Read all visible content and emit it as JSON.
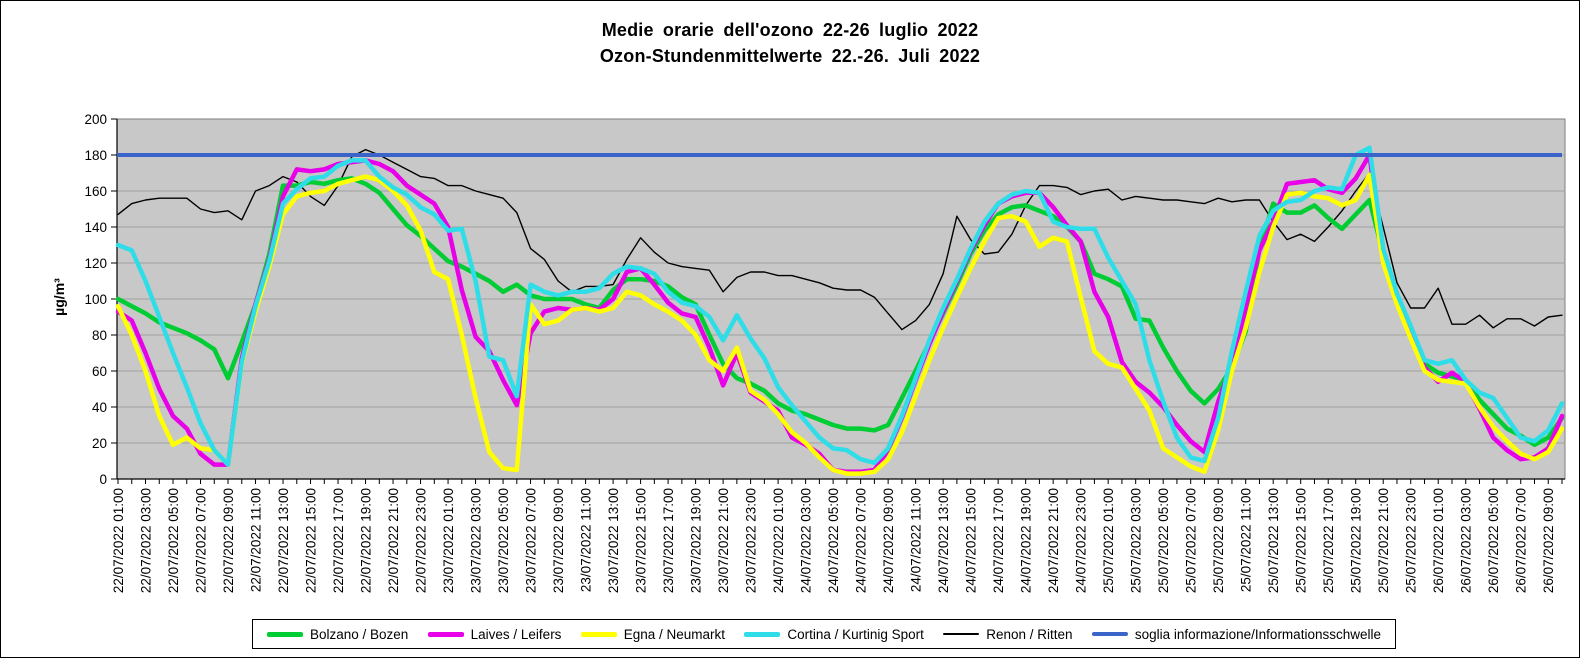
{
  "title": {
    "line1": "Medie orarie dell'ozono 22-26 luglio 2022",
    "line2": "Ozon-Stundenmittelwerte 22.-26. Juli 2022"
  },
  "y_axis": {
    "title": "µg/m³",
    "ticks": [
      "0",
      "20",
      "40",
      "60",
      "80",
      "100",
      "120",
      "140",
      "160",
      "180",
      "200"
    ]
  },
  "x_axis": {
    "tick_labels": [
      "22/07/2022 01:00",
      "22/07/2022 03:00",
      "22/07/2022 05:00",
      "22/07/2022 07:00",
      "22/07/2022 09:00",
      "22/07/2022 11:00",
      "22/07/2022 13:00",
      "22/07/2022 15:00",
      "22/07/2022 17:00",
      "22/07/2022 19:00",
      "22/07/2022 21:00",
      "22/07/2022 23:00",
      "23/07/2022 01:00",
      "23/07/2022 03:00",
      "23/07/2022 05:00",
      "23/07/2022 07:00",
      "23/07/2022 09:00",
      "23/07/2022 11:00",
      "23/07/2022 13:00",
      "23/07/2022 15:00",
      "23/07/2022 17:00",
      "23/07/2022 19:00",
      "23/07/2022 21:00",
      "23/07/2022 23:00",
      "24/07/2022 01:00",
      "24/07/2022 03:00",
      "24/07/2022 05:00",
      "24/07/2022 07:00",
      "24/07/2022 09:00",
      "24/07/2022 11:00",
      "24/07/2022 13:00",
      "24/07/2022 15:00",
      "24/07/2022 17:00",
      "24/07/2022 19:00",
      "24/07/2022 21:00",
      "24/07/2022 23:00",
      "25/07/2022 01:00",
      "25/07/2022 03:00",
      "25/07/2022 05:00",
      "25/07/2022 07:00",
      "25/07/2022 09:00",
      "25/07/2022 11:00",
      "25/07/2022 13:00",
      "25/07/2022 15:00",
      "25/07/2022 17:00",
      "25/07/2022 19:00",
      "25/07/2022 21:00",
      "25/07/2022 23:00",
      "26/07/2022 01:00",
      "26/07/2022 03:00",
      "26/07/2022 05:00",
      "26/07/2022 07:00",
      "26/07/2022 09:00"
    ],
    "label_every": 2
  },
  "legend": [
    {
      "id": "bolzano",
      "label": "Bolzano / Bozen",
      "color": "#00CC33",
      "line_width": 5
    },
    {
      "id": "laives",
      "label": "Laives / Leifers",
      "color": "#E800E8",
      "line_width": 5
    },
    {
      "id": "egna",
      "label": "Egna / Neumarkt",
      "color": "#FFFF00",
      "line_width": 5
    },
    {
      "id": "cortina",
      "label": "Cortina / Kurtinig Sport",
      "color": "#2EDDE8",
      "line_width": 5
    },
    {
      "id": "renon",
      "label": "Renon / Ritten",
      "color": "#000000",
      "line_width": 2
    },
    {
      "id": "soglia",
      "label": "soglia informazione/Informationsschwelle",
      "color": "#3A64C8",
      "line_width": 4
    }
  ],
  "chart_data": {
    "type": "line",
    "x_start": "22/07/2022 01:00",
    "x_step_hours": 1,
    "x_count": 106,
    "ylim": [
      0,
      200
    ],
    "grid": true,
    "plot_bg": "#C8C8C8",
    "grid_color": "#A0A0A0",
    "draw_order": [
      4,
      0,
      1,
      2,
      3
    ],
    "threshold": {
      "label": "soglia informazione/Informationsschwelle",
      "value": 180,
      "color": "#3A64C8"
    },
    "series": [
      {
        "id": "bolzano",
        "name": "Bolzano / Bozen",
        "color": "#00CC33",
        "width": 4.5,
        "values": [
          100,
          96,
          92,
          87,
          84,
          81,
          77,
          72,
          56,
          76,
          97,
          125,
          163,
          163,
          165,
          164,
          166,
          167,
          164,
          159,
          150,
          141,
          135,
          128,
          121,
          118,
          114,
          110,
          104,
          108,
          102,
          100,
          100,
          100,
          97,
          95,
          105,
          111,
          111,
          110,
          107,
          101,
          97,
          80,
          64,
          56,
          53,
          49,
          42,
          38,
          36,
          33,
          30,
          28,
          28,
          27,
          30,
          45,
          60,
          76,
          92,
          108,
          125,
          138,
          147,
          151,
          152,
          149,
          146,
          140,
          132,
          114,
          111,
          107,
          89,
          88,
          73,
          60,
          49,
          42,
          50,
          62,
          82,
          128,
          153,
          148,
          148,
          152,
          145,
          139,
          147,
          155,
          125,
          100,
          83,
          64,
          59,
          57,
          55,
          44,
          36,
          28,
          24,
          19,
          23,
          34
        ]
      },
      {
        "id": "laives",
        "name": "Laives / Leifers",
        "color": "#E800E8",
        "width": 4.5,
        "values": [
          93,
          88,
          70,
          50,
          35,
          28,
          14,
          8,
          8,
          67,
          97,
          122,
          157,
          172,
          171,
          172,
          175,
          176,
          177,
          175,
          171,
          163,
          158,
          153,
          140,
          105,
          79,
          71,
          55,
          41,
          81,
          93,
          95,
          94,
          95,
          94,
          100,
          115,
          117,
          108,
          98,
          92,
          90,
          73,
          52,
          70,
          48,
          43,
          38,
          23,
          19,
          14,
          5,
          4,
          4,
          5,
          16,
          34,
          55,
          75,
          93,
          110,
          127,
          141,
          153,
          157,
          159,
          159,
          151,
          141,
          132,
          104,
          90,
          65,
          54,
          48,
          40,
          30,
          21,
          15,
          43,
          64,
          95,
          127,
          143,
          164,
          165,
          166,
          161,
          159,
          167,
          180,
          122,
          98,
          80,
          62,
          54,
          59,
          54,
          39,
          23,
          16,
          11,
          12,
          17,
          35
        ]
      },
      {
        "id": "egna",
        "name": "Egna / Neumarkt",
        "color": "#FFFF00",
        "width": 4.5,
        "values": [
          96,
          80,
          60,
          35,
          19,
          23,
          17,
          16,
          8,
          64,
          93,
          118,
          147,
          157,
          159,
          160,
          164,
          166,
          168,
          166,
          160,
          152,
          138,
          115,
          111,
          80,
          45,
          15,
          6,
          5,
          97,
          86,
          88,
          94,
          95,
          93,
          95,
          104,
          102,
          97,
          93,
          88,
          80,
          66,
          60,
          73,
          49,
          44,
          36,
          26,
          20,
          12,
          5,
          3,
          3,
          4,
          11,
          26,
          46,
          66,
          84,
          101,
          117,
          132,
          145,
          146,
          143,
          129,
          134,
          132,
          101,
          71,
          64,
          62,
          50,
          38,
          17,
          12,
          7,
          4,
          27,
          60,
          84,
          115,
          140,
          158,
          159,
          157,
          156,
          152,
          155,
          169,
          120,
          97,
          78,
          60,
          55,
          54,
          53,
          40,
          29,
          21,
          14,
          11,
          15,
          28
        ]
      },
      {
        "id": "cortina",
        "name": "Cortina / Kurtinig Sport",
        "color": "#2EDDE8",
        "width": 4.5,
        "values": [
          130,
          127,
          110,
          90,
          70,
          51,
          31,
          16,
          8,
          65,
          96,
          121,
          153,
          161,
          167,
          168,
          174,
          177,
          177,
          168,
          162,
          158,
          151,
          147,
          138,
          139,
          110,
          68,
          66,
          46,
          108,
          104,
          102,
          104,
          104,
          106,
          114,
          118,
          117,
          114,
          104,
          98,
          96,
          90,
          77,
          91,
          78,
          67,
          51,
          41,
          32,
          23,
          17,
          16,
          11,
          9,
          17,
          35,
          56,
          77,
          95,
          111,
          128,
          143,
          153,
          158,
          160,
          159,
          143,
          140,
          139,
          139,
          123,
          110,
          97,
          66,
          43,
          23,
          12,
          10,
          34,
          71,
          104,
          135,
          149,
          154,
          155,
          160,
          162,
          161,
          180,
          184,
          128,
          103,
          85,
          66,
          64,
          66,
          55,
          48,
          45,
          34,
          23,
          21,
          27,
          42
        ]
      },
      {
        "id": "renon",
        "name": "Renon / Ritten",
        "color": "#000000",
        "width": 1.4,
        "values": [
          147,
          153,
          155,
          156,
          156,
          156,
          150,
          148,
          149,
          144,
          160,
          163,
          168,
          165,
          157,
          152,
          163,
          179,
          183,
          180,
          176,
          172,
          168,
          167,
          163,
          163,
          160,
          158,
          156,
          148,
          128,
          122,
          110,
          104,
          107,
          107,
          108,
          122,
          134,
          126,
          120,
          118,
          117,
          116,
          104,
          112,
          115,
          115,
          113,
          113,
          111,
          109,
          106,
          105,
          105,
          101,
          92,
          83,
          88,
          97,
          114,
          146,
          133,
          125,
          126,
          136,
          152,
          163,
          163,
          162,
          158,
          160,
          161,
          155,
          157,
          156,
          155,
          155,
          154,
          153,
          156,
          154,
          155,
          155,
          143,
          133,
          136,
          132,
          140,
          149,
          160,
          170,
          140,
          109,
          95,
          95,
          106,
          86,
          86,
          91,
          84,
          89,
          89,
          85,
          90,
          91
        ]
      }
    ]
  }
}
